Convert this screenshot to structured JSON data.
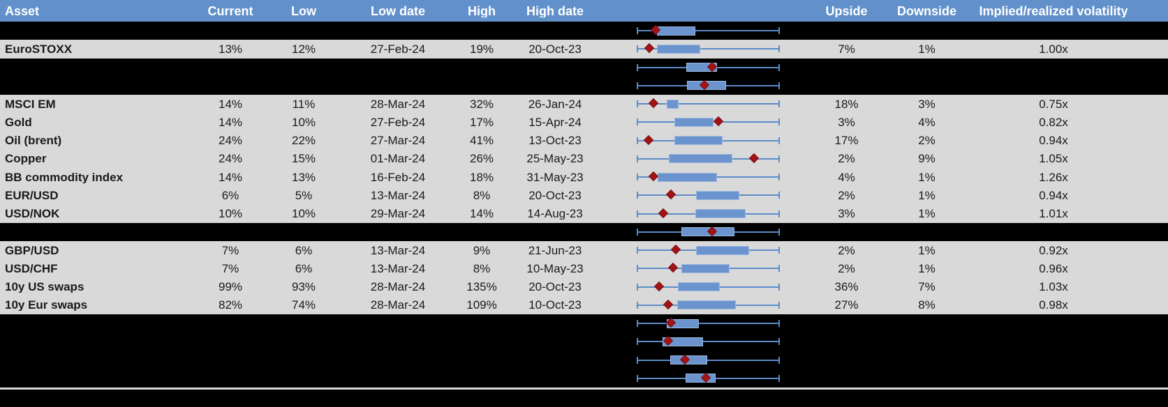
{
  "header": {
    "columns": [
      "Asset",
      "Current",
      "Low",
      "Low date",
      "High",
      "High date",
      "",
      "Upside",
      "Downside",
      "Implied/realized volatility"
    ]
  },
  "colors": {
    "header_bg": "#6190CA",
    "row_gray": "#D9D9D9",
    "row_black": "#000000",
    "box_fill": "#6B94CE",
    "box_border": "#9BB7E0",
    "whisker": "#5C8CC8",
    "marker": "#A31315",
    "header_text": "#FFFFFF"
  },
  "chart_data": {
    "type": "table",
    "plot_column": {
      "type": "box-whisker",
      "description": "Per-row horizontal box plot normalized to each asset's own range: left whisker cap = Low value, right whisker cap = High value, red diamond marker = Current value, blue box = middle range of period (box and marker positions given as fractions 0-1 of the whisker span). Rows with empty asset text are black separator rows that still display a box plot.",
      "marker_glyph": "red diamond",
      "legend": "none",
      "grid": "off"
    },
    "rows": [
      {
        "type": "black",
        "asset": "",
        "current": "",
        "low": "",
        "low_date": "",
        "high": "",
        "high_date": "",
        "upside": "",
        "downside": "",
        "implied_realized": "",
        "plot": {
          "box": [
            0.143,
            0.412
          ],
          "marker": 0.139
        }
      },
      {
        "type": "gray",
        "asset": "EuroSTOXX",
        "current": "13%",
        "low": "12%",
        "low_date": "27-Feb-24",
        "high": "19%",
        "high_date": "20-Oct-23",
        "upside": "7%",
        "downside": "1%",
        "implied_realized": "1.00x",
        "plot": {
          "box": [
            0.143,
            0.446
          ],
          "marker": 0.094
        }
      },
      {
        "type": "black",
        "asset": "",
        "current": "",
        "low": "",
        "low_date": "",
        "high": "",
        "high_date": "",
        "upside": "",
        "downside": "",
        "implied_realized": "",
        "plot": {
          "box": [
            0.344,
            0.559
          ],
          "marker": 0.534
        }
      },
      {
        "type": "black",
        "asset": "",
        "current": "",
        "low": "",
        "low_date": "",
        "high": "",
        "high_date": "",
        "upside": "",
        "downside": "",
        "implied_realized": "",
        "plot": {
          "box": [
            0.353,
            0.625
          ],
          "marker": 0.48
        }
      },
      {
        "type": "gray",
        "asset": "MSCI EM",
        "current": "14%",
        "low": "11%",
        "low_date": "28-Mar-24",
        "high": "32%",
        "high_date": "26-Jan-24",
        "upside": "18%",
        "downside": "3%",
        "implied_realized": "0.75x",
        "plot": {
          "box": [
            0.208,
            0.291
          ],
          "marker": 0.122
        }
      },
      {
        "type": "gray",
        "asset": "Gold",
        "current": "14%",
        "low": "10%",
        "low_date": "27-Feb-24",
        "high": "17%",
        "high_date": "15-Apr-24",
        "upside": "3%",
        "downside": "4%",
        "implied_realized": "0.82x",
        "plot": {
          "box": [
            0.264,
            0.537
          ],
          "marker": 0.575
        }
      },
      {
        "type": "gray",
        "asset": "Oil (brent)",
        "current": "24%",
        "low": "22%",
        "low_date": "27-Mar-24",
        "high": "41%",
        "high_date": "13-Oct-23",
        "upside": "17%",
        "downside": "2%",
        "implied_realized": "0.94x",
        "plot": {
          "box": [
            0.264,
            0.601
          ],
          "marker": 0.088
        }
      },
      {
        "type": "gray",
        "asset": "Copper",
        "current": "24%",
        "low": "15%",
        "low_date": "01-Mar-24",
        "high": "26%",
        "high_date": "25-May-23",
        "upside": "2%",
        "downside": "9%",
        "implied_realized": "1.05x",
        "plot": {
          "box": [
            0.223,
            0.666
          ],
          "marker": 0.823
        }
      },
      {
        "type": "gray",
        "asset": "BB commodity index",
        "current": "14%",
        "low": "13%",
        "low_date": "16-Feb-24",
        "high": "18%",
        "high_date": "31-May-23",
        "upside": "4%",
        "downside": "1%",
        "implied_realized": "1.26x",
        "plot": {
          "box": [
            0.145,
            0.559
          ],
          "marker": 0.12
        }
      },
      {
        "type": "gray",
        "asset": "EUR/USD",
        "current": "6%",
        "low": "5%",
        "low_date": "13-Mar-24",
        "high": "8%",
        "high_date": "20-Oct-23",
        "upside": "2%",
        "downside": "1%",
        "implied_realized": "0.94x",
        "plot": {
          "box": [
            0.415,
            0.716
          ],
          "marker": 0.242
        }
      },
      {
        "type": "gray",
        "asset": "USD/NOK",
        "current": "10%",
        "low": "10%",
        "low_date": "29-Mar-24",
        "high": "14%",
        "high_date": "14-Aug-23",
        "upside": "3%",
        "downside": "1%",
        "implied_realized": "1.01x",
        "plot": {
          "box": [
            0.41,
            0.76
          ],
          "marker": 0.19
        }
      },
      {
        "type": "black",
        "asset": "",
        "current": "",
        "low": "",
        "low_date": "",
        "high": "",
        "high_date": "",
        "upside": "",
        "downside": "",
        "implied_realized": "",
        "plot": {
          "box": [
            0.311,
            0.681
          ],
          "marker": 0.533
        }
      },
      {
        "type": "gray",
        "asset": "GBP/USD",
        "current": "7%",
        "low": "6%",
        "low_date": "13-Mar-24",
        "high": "9%",
        "high_date": "21-Jun-23",
        "upside": "2%",
        "downside": "1%",
        "implied_realized": "0.92x",
        "plot": {
          "box": [
            0.415,
            0.783
          ],
          "marker": 0.28
        }
      },
      {
        "type": "gray",
        "asset": "USD/CHF",
        "current": "7%",
        "low": "6%",
        "low_date": "13-Mar-24",
        "high": "8%",
        "high_date": "10-May-23",
        "upside": "2%",
        "downside": "1%",
        "implied_realized": "0.96x",
        "plot": {
          "box": [
            0.313,
            0.651
          ],
          "marker": 0.259
        }
      },
      {
        "type": "gray",
        "asset": "10y US swaps",
        "current": "99%",
        "low": "93%",
        "low_date": "28-Mar-24",
        "high": "135%",
        "high_date": "20-Oct-23",
        "upside": "36%",
        "downside": "7%",
        "implied_realized": "1.03x",
        "plot": {
          "box": [
            0.29,
            0.58
          ],
          "marker": 0.161
        }
      },
      {
        "type": "gray",
        "asset": "10y Eur swaps",
        "current": "82%",
        "low": "74%",
        "low_date": "28-Mar-24",
        "high": "109%",
        "high_date": "10-Oct-23",
        "upside": "27%",
        "downside": "8%",
        "implied_realized": "0.98x",
        "plot": {
          "box": [
            0.285,
            0.695
          ],
          "marker": 0.223
        }
      },
      {
        "type": "black",
        "asset": "",
        "current": "",
        "low": "",
        "low_date": "",
        "high": "",
        "high_date": "",
        "upside": "",
        "downside": "",
        "implied_realized": "",
        "plot": {
          "box": [
            0.208,
            0.435
          ],
          "marker": 0.246
        }
      },
      {
        "type": "black",
        "asset": "",
        "current": "",
        "low": "",
        "low_date": "",
        "high": "",
        "high_date": "",
        "upside": "",
        "downside": "",
        "implied_realized": "",
        "plot": {
          "box": [
            0.179,
            0.463
          ],
          "marker": 0.226
        }
      },
      {
        "type": "black",
        "asset": "",
        "current": "",
        "low": "",
        "low_date": "",
        "high": "",
        "high_date": "",
        "upside": "",
        "downside": "",
        "implied_realized": "",
        "plot": {
          "box": [
            0.235,
            0.494
          ],
          "marker": 0.343
        }
      },
      {
        "type": "black",
        "asset": "",
        "current": "",
        "low": "",
        "low_date": "",
        "high": "",
        "high_date": "",
        "upside": "",
        "downside": "",
        "implied_realized": "",
        "plot": {
          "box": [
            0.34,
            0.552
          ],
          "marker": 0.487
        }
      }
    ]
  }
}
